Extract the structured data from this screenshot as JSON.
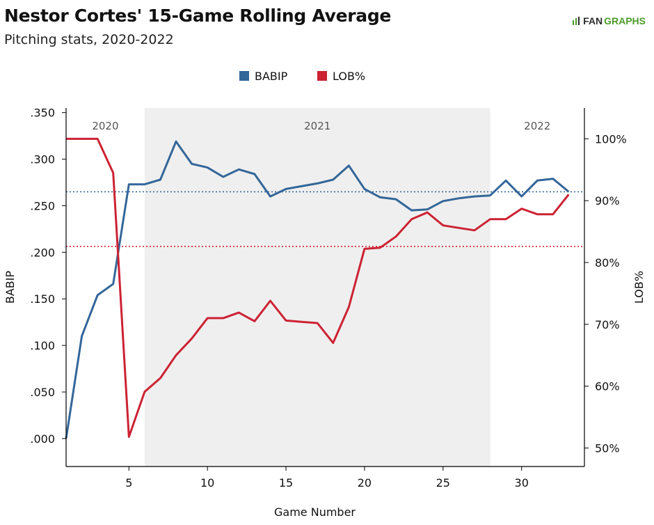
{
  "header": {
    "title": "Nestor Cortes' 15-Game Rolling Average",
    "subtitle": "Pitching stats, 2020-2022",
    "brand_prefix": "FAN",
    "brand_suffix": "GRAPHS"
  },
  "chart_data": {
    "type": "line",
    "xlabel": "Game Number",
    "ylabel_left": "BABIP",
    "ylabel_right": "LOB%",
    "xlim": [
      1,
      34
    ],
    "ylim_left": [
      -0.03,
      0.355
    ],
    "ylim_right": [
      47,
      105
    ],
    "x_ticks": [
      5,
      10,
      15,
      20,
      25,
      30
    ],
    "y_ticks_left": [
      {
        "value": 0.0,
        "label": ".000"
      },
      {
        "value": 0.05,
        "label": ".050"
      },
      {
        "value": 0.1,
        "label": ".100"
      },
      {
        "value": 0.15,
        "label": ".150"
      },
      {
        "value": 0.2,
        "label": ".200"
      },
      {
        "value": 0.25,
        "label": ".250"
      },
      {
        "value": 0.3,
        "label": ".300"
      },
      {
        "value": 0.35,
        "label": ".350"
      }
    ],
    "y_ticks_right": [
      {
        "value": 50,
        "label": "50%"
      },
      {
        "value": 60,
        "label": "60%"
      },
      {
        "value": 70,
        "label": "70%"
      },
      {
        "value": 80,
        "label": "80%"
      },
      {
        "value": 90,
        "label": "90%"
      },
      {
        "value": 100,
        "label": "100%"
      }
    ],
    "legend_position": "top-center",
    "seasons": [
      {
        "label": "2020",
        "start": 1,
        "end": 6,
        "shaded": false
      },
      {
        "label": "2021",
        "start": 6,
        "end": 28,
        "shaded": true
      },
      {
        "label": "2022",
        "start": 28,
        "end": 34,
        "shaded": false
      }
    ],
    "series": [
      {
        "name": "BABIP",
        "axis": "left",
        "color": "#336699",
        "x": [
          1,
          2,
          3,
          4,
          5,
          6,
          7,
          8,
          9,
          10,
          11,
          12,
          13,
          14,
          15,
          16,
          17,
          18,
          19,
          20,
          21,
          22,
          23,
          24,
          25,
          26,
          27,
          28,
          29,
          30,
          31,
          32,
          33
        ],
        "values": [
          0.0,
          0.11,
          0.154,
          0.166,
          0.273,
          0.273,
          0.278,
          0.319,
          0.295,
          0.291,
          0.281,
          0.289,
          0.284,
          0.26,
          0.268,
          0.271,
          0.274,
          0.278,
          0.293,
          0.268,
          0.259,
          0.257,
          0.245,
          0.246,
          0.255,
          0.258,
          0.26,
          0.261,
          0.277,
          0.26,
          0.277,
          0.279,
          0.265
        ]
      },
      {
        "name": "LOB%",
        "axis": "right",
        "color": "#cc2233",
        "x": [
          1,
          2,
          3,
          4,
          5,
          6,
          7,
          8,
          9,
          10,
          11,
          12,
          13,
          14,
          15,
          16,
          17,
          18,
          19,
          20,
          21,
          22,
          23,
          24,
          25,
          26,
          27,
          28,
          29,
          30,
          31,
          32,
          33
        ],
        "values": [
          100,
          100,
          100,
          94.5,
          51.8,
          59.1,
          61.3,
          65,
          67.7,
          71,
          71,
          71.9,
          70.5,
          73.8,
          70.6,
          70.4,
          70.2,
          67,
          72.8,
          82.2,
          82.4,
          84.2,
          87,
          88.1,
          86,
          85.6,
          85.2,
          87,
          87,
          88.7,
          87.8,
          87.8,
          91
        ]
      }
    ],
    "reference_lines": [
      {
        "axis": "left",
        "value": 0.265,
        "color": "#336699"
      },
      {
        "axis": "right",
        "value": 82.6,
        "color": "#cc2233"
      }
    ]
  }
}
